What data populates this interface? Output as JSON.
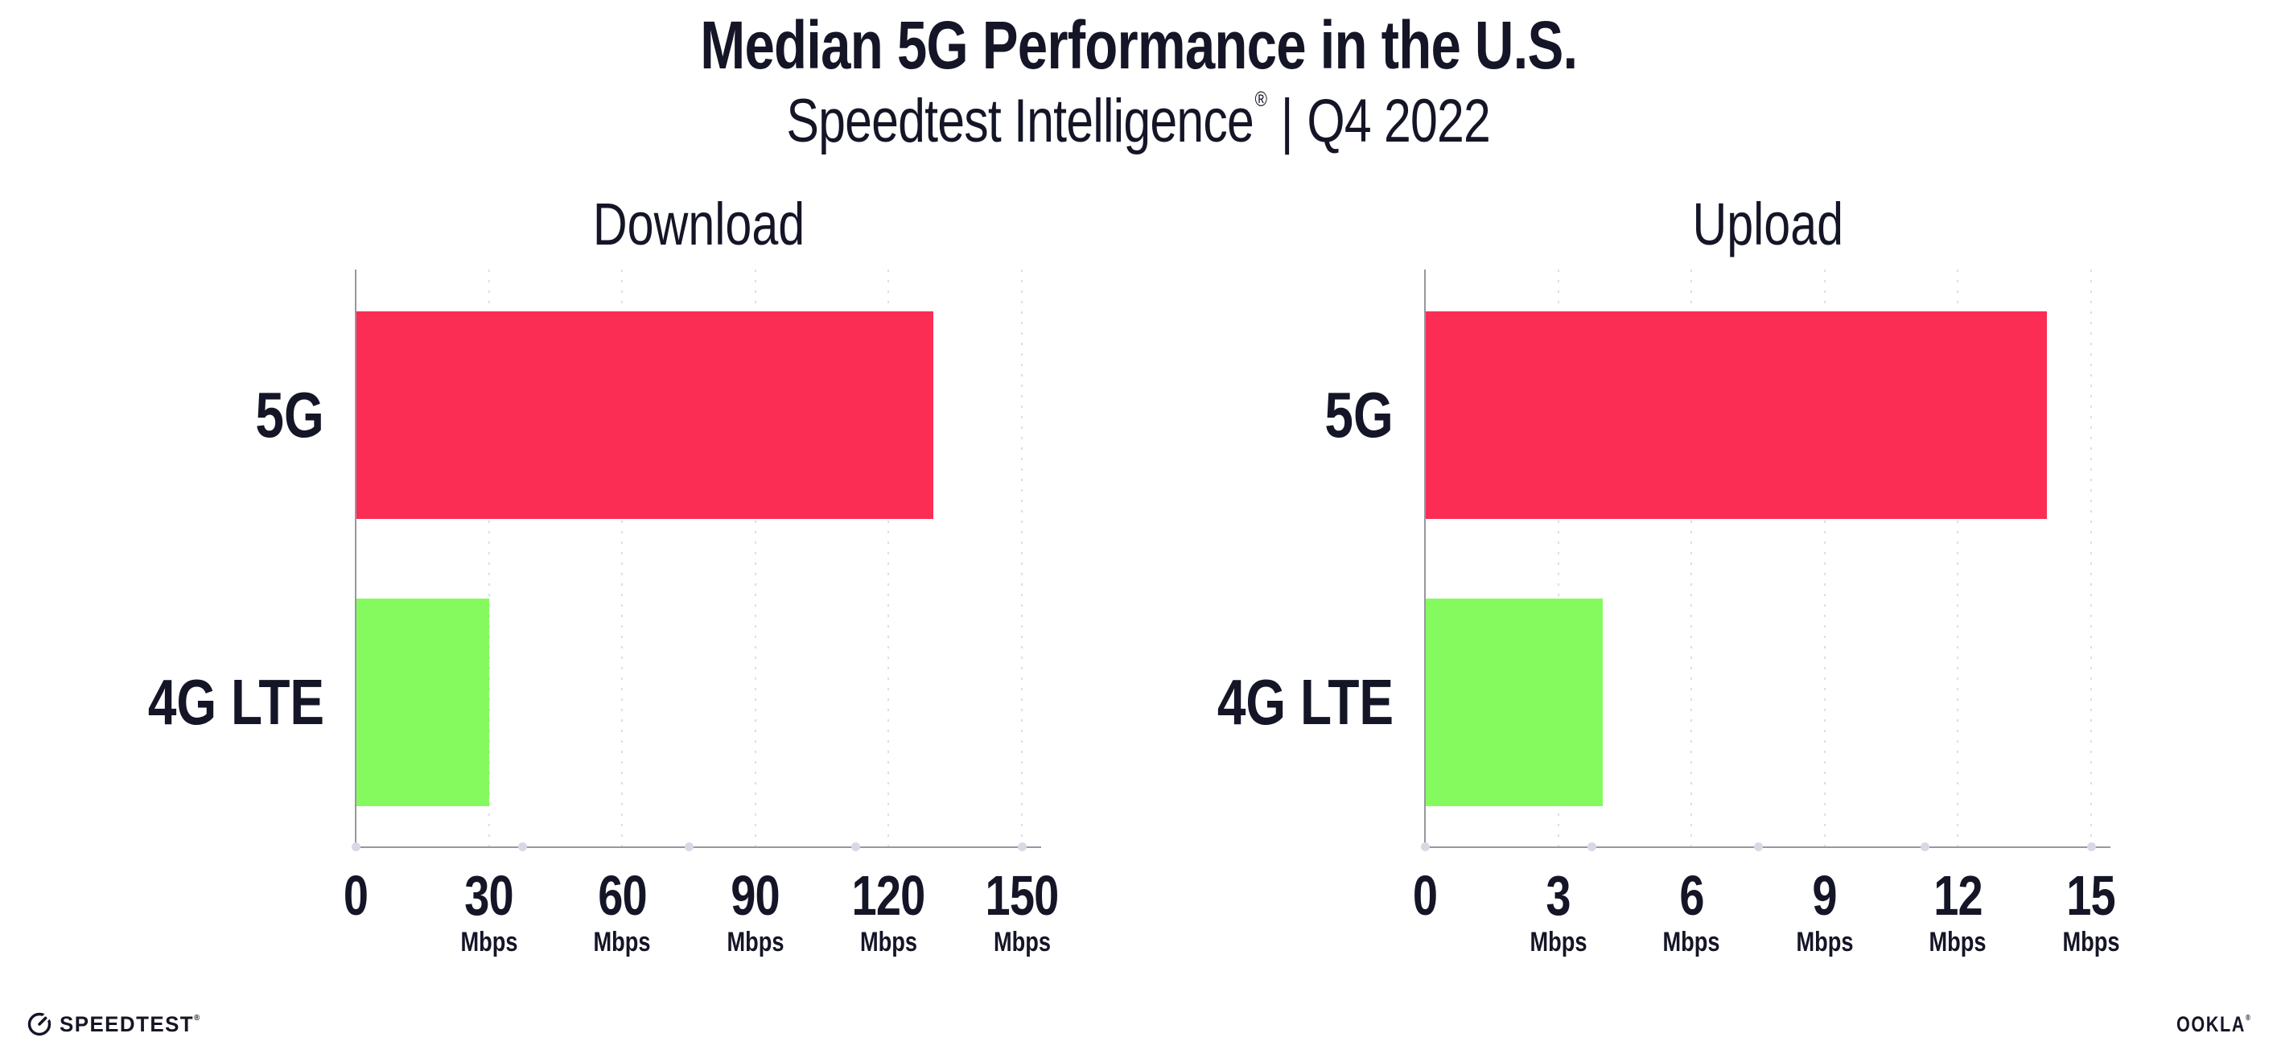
{
  "header": {
    "title": "Median 5G Performance in the U.S.",
    "subtitle_product": "Speedtest Intelligence",
    "subtitle_registered_mark": "®",
    "subtitle_divider": "|",
    "subtitle_period": "Q4 2022"
  },
  "chart_data": [
    {
      "id": "download",
      "type": "bar",
      "orientation": "horizontal",
      "title": "Download",
      "categories": [
        "5G",
        "4G LTE"
      ],
      "values": [
        130,
        30
      ],
      "value_unit": "Mbps",
      "xlim": [
        0,
        150
      ],
      "xticks": [
        0,
        30,
        60,
        90,
        120,
        150
      ],
      "xtick_unit": "Mbps",
      "bar_colors": [
        "#FB2D55",
        "#84FA5F"
      ],
      "grid": "vertical-dotted",
      "legend": "none"
    },
    {
      "id": "upload",
      "type": "bar",
      "orientation": "horizontal",
      "title": "Upload",
      "categories": [
        "5G",
        "4G LTE"
      ],
      "values": [
        14,
        4
      ],
      "value_unit": "Mbps",
      "xlim": [
        0,
        15
      ],
      "xticks": [
        0,
        3,
        6,
        9,
        12,
        15
      ],
      "xtick_unit": "Mbps",
      "bar_colors": [
        "#FB2D55",
        "#84FA5F"
      ],
      "grid": "vertical-dotted",
      "legend": "none"
    }
  ],
  "footer": {
    "speedtest_wordmark": "SPEEDTEST",
    "speedtest_mark": "®",
    "ookla_wordmark": "OOKLA",
    "ookla_mark": "®"
  },
  "colors": {
    "background": "#FFFFFF",
    "text": "#141526",
    "bar_5g": "#FB2D55",
    "bar_4g_lte": "#84FA5F",
    "axis_line": "#97979F",
    "gridline_dot": "#DDDDE9",
    "axis_marker_dot": "#D9D9E6"
  }
}
